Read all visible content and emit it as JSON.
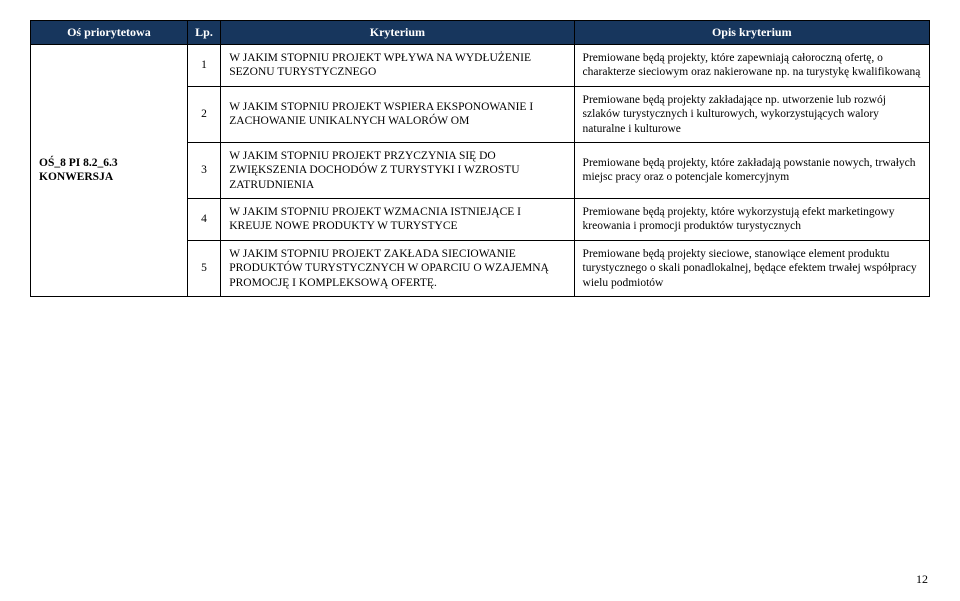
{
  "header": {
    "axis": "Oś priorytetowa",
    "lp": "Lp.",
    "criterion": "Kryterium",
    "desc": "Opis kryterium"
  },
  "axis_label": "OŚ_8 PI 8.2_6.3 KONWERSJA",
  "rows": [
    {
      "lp": "1",
      "criterion": "W JAKIM STOPNIU PROJEKT WPŁYWA NA WYDŁUŻENIE SEZONU TURYSTYCZNEGO",
      "desc": "Premiowane będą projekty, które zapewniają całoroczną ofertę, o charakterze sieciowym oraz nakierowane np. na turystykę kwalifikowaną"
    },
    {
      "lp": "2",
      "criterion": "W JAKIM STOPNIU PROJEKT WSPIERA EKSPONOWANIE I ZACHOWANIE UNIKALNYCH WALORÓW OM",
      "desc": "Premiowane będą projekty zakładające np. utworzenie lub rozwój szlaków turystycznych i kulturowych, wykorzystujących walory naturalne i kulturowe"
    },
    {
      "lp": "3",
      "criterion": "W JAKIM STOPNIU PROJEKT PRZYCZYNIA SIĘ DO ZWIĘKSZENIA DOCHODÓW Z TURYSTYKI I WZROSTU ZATRUDNIENIA",
      "desc": "Premiowane będą projekty, które zakładają powstanie nowych, trwałych miejsc pracy oraz o potencjale komercyjnym"
    },
    {
      "lp": "4",
      "criterion": "W JAKIM STOPNIU PROJEKT WZMACNIA ISTNIEJĄCE I KREUJE NOWE PRODUKTY W TURYSTYCE",
      "desc": "Premiowane będą projekty, które wykorzystują efekt marketingowy kreowania i promocji produktów turystycznych"
    },
    {
      "lp": "5",
      "criterion": "W JAKIM STOPNIU PROJEKT ZAKŁADA SIECIOWANIE PRODUKTÓW TURYSTYCZNYCH W OPARCIU O WZAJEMNĄ PROMOCJĘ I KOMPLEKSOWĄ OFERTĘ.",
      "desc": "Premiowane będą projekty sieciowe, stanowiące element produktu turystycznego o skali ponadlokalnej, będące efektem trwałej współpracy wielu podmiotów"
    }
  ],
  "page_number": "12",
  "colors": {
    "header_bg": "#17365d",
    "header_text": "#ffffff",
    "border": "#000000",
    "body_text": "#000000",
    "background": "#ffffff"
  }
}
